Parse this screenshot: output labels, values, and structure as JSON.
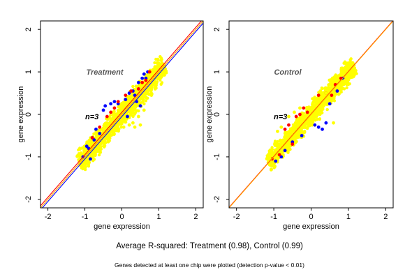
{
  "chart_data": [
    {
      "type": "scatter",
      "title": "Treatment",
      "xlabel": "gene expression",
      "ylabel": "gene expression",
      "xlim": [
        -2.2,
        2.2
      ],
      "ylim": [
        -2.2,
        2.2
      ],
      "x_ticks": [
        -2,
        -1,
        0,
        1,
        2
      ],
      "y_ticks": [
        -2,
        -1,
        0,
        1,
        2
      ],
      "annotation": "n=3",
      "point_cloud": {
        "x_range": [
          -1.15,
          1.15
        ],
        "spread": 0.1
      },
      "series": [
        {
          "color": "#0000ff",
          "points": [
            [
              -1.05,
              -1.0
            ],
            [
              -0.95,
              -0.75
            ],
            [
              -0.9,
              -0.8
            ],
            [
              -0.7,
              -0.35
            ],
            [
              -0.6,
              -0.45
            ],
            [
              -0.5,
              0.1
            ],
            [
              -0.45,
              0.2
            ],
            [
              -0.3,
              0.25
            ],
            [
              -0.2,
              0.3
            ],
            [
              -0.1,
              0.25
            ],
            [
              0.1,
              0.35
            ],
            [
              0.2,
              0.5
            ],
            [
              0.3,
              0.55
            ],
            [
              0.45,
              0.75
            ],
            [
              0.55,
              0.85
            ],
            [
              0.6,
              0.95
            ],
            [
              0.7,
              1.0
            ],
            [
              -0.75,
              -0.6
            ],
            [
              0.35,
              0.45
            ],
            [
              0.15,
              -0.05
            ],
            [
              0.5,
              0.2
            ],
            [
              0.4,
              0.3
            ],
            [
              -0.8,
              -0.55
            ],
            [
              0.65,
              0.85
            ],
            [
              -0.85,
              -1.05
            ]
          ]
        },
        {
          "color": "#ff0000",
          "points": [
            [
              -0.8,
              -0.55
            ],
            [
              -0.6,
              -0.3
            ],
            [
              -0.4,
              -0.05
            ],
            [
              -0.3,
              0.05
            ],
            [
              -0.2,
              0.15
            ],
            [
              -0.1,
              0.3
            ],
            [
              0.1,
              0.45
            ],
            [
              0.25,
              0.55
            ],
            [
              0.45,
              0.6
            ],
            [
              0.55,
              0.75
            ],
            [
              0.65,
              0.8
            ],
            [
              0.75,
              1.0
            ]
          ]
        },
        {
          "color": "#ffff00",
          "points": [
            [
              -1.15,
              -1.1
            ],
            [
              -1.0,
              -1.1
            ],
            [
              0.3,
              -0.2
            ],
            [
              0.45,
              -0.05
            ],
            [
              0.6,
              0.1
            ],
            [
              0.2,
              -0.25
            ],
            [
              0.05,
              -0.3
            ],
            [
              0.9,
              0.6
            ],
            [
              0.5,
              -0.25
            ],
            [
              0.35,
              -0.3
            ],
            [
              1.15,
              1.15
            ],
            [
              0.8,
              0.45
            ],
            [
              -0.1,
              -0.35
            ]
          ]
        }
      ],
      "lines": [
        {
          "color": "#ff0000",
          "slope": 1,
          "intercept": 0.05
        },
        {
          "color": "#0000ff",
          "slope": 1,
          "intercept": -0.05
        },
        {
          "color": "#ffa500",
          "slope": 1,
          "intercept": 0
        }
      ]
    },
    {
      "type": "scatter",
      "title": "Control",
      "xlabel": "gene expression",
      "ylabel": "gene expression",
      "xlim": [
        -2.2,
        2.2
      ],
      "ylim": [
        -2.2,
        2.2
      ],
      "x_ticks": [
        -2,
        -1,
        0,
        1,
        2
      ],
      "y_ticks": [
        -2,
        -1,
        0,
        1,
        2
      ],
      "annotation": "n=3",
      "point_cloud": {
        "x_range": [
          -1.15,
          1.15
        ],
        "spread": 0.09
      },
      "series": [
        {
          "color": "#0000ff",
          "points": [
            [
              -0.95,
              -1.1
            ],
            [
              -0.7,
              -0.85
            ],
            [
              -0.5,
              -0.65
            ],
            [
              -0.25,
              -0.5
            ],
            [
              0.1,
              -0.25
            ],
            [
              0.3,
              -0.35
            ],
            [
              0.5,
              0.25
            ],
            [
              0.7,
              0.55
            ],
            [
              0.85,
              0.85
            ],
            [
              -0.8,
              -1.0
            ],
            [
              0.2,
              -0.3
            ],
            [
              0.4,
              -0.2
            ]
          ]
        },
        {
          "color": "#ff0000",
          "points": [
            [
              -1.05,
              -1.05
            ],
            [
              -0.85,
              -0.95
            ],
            [
              -0.7,
              -0.35
            ],
            [
              -0.6,
              -0.25
            ],
            [
              -0.5,
              -0.7
            ],
            [
              -0.4,
              -0.05
            ],
            [
              -0.2,
              0.15
            ],
            [
              -0.1,
              0.05
            ],
            [
              0.2,
              0.45
            ],
            [
              0.4,
              0.5
            ],
            [
              0.55,
              0.45
            ],
            [
              0.65,
              0.7
            ],
            [
              0.8,
              0.85
            ],
            [
              -0.3,
              0.0
            ]
          ]
        },
        {
          "color": "#ffff00",
          "points": [
            [
              -1.1,
              -1.05
            ],
            [
              -0.9,
              -0.4
            ],
            [
              -0.8,
              -0.3
            ],
            [
              -0.6,
              -0.05
            ],
            [
              -0.45,
              0.05
            ],
            [
              -0.3,
              0.15
            ],
            [
              0.25,
              0.55
            ],
            [
              0.4,
              0.5
            ],
            [
              0.5,
              0.6
            ],
            [
              0.7,
              0.85
            ],
            [
              1.15,
              1.15
            ],
            [
              0.9,
              0.8
            ],
            [
              0.6,
              -0.2
            ]
          ]
        }
      ],
      "lines": [
        {
          "color": "#ff0000",
          "slope": 1,
          "intercept": 0.01
        },
        {
          "color": "#ffa500",
          "slope": 1,
          "intercept": 0
        }
      ]
    }
  ],
  "caption": "Average R-squared: Treatment (0.98), Control (0.99)",
  "footnote": "Genes detected at least one chip were plotted (detection p-value < 0.01)"
}
